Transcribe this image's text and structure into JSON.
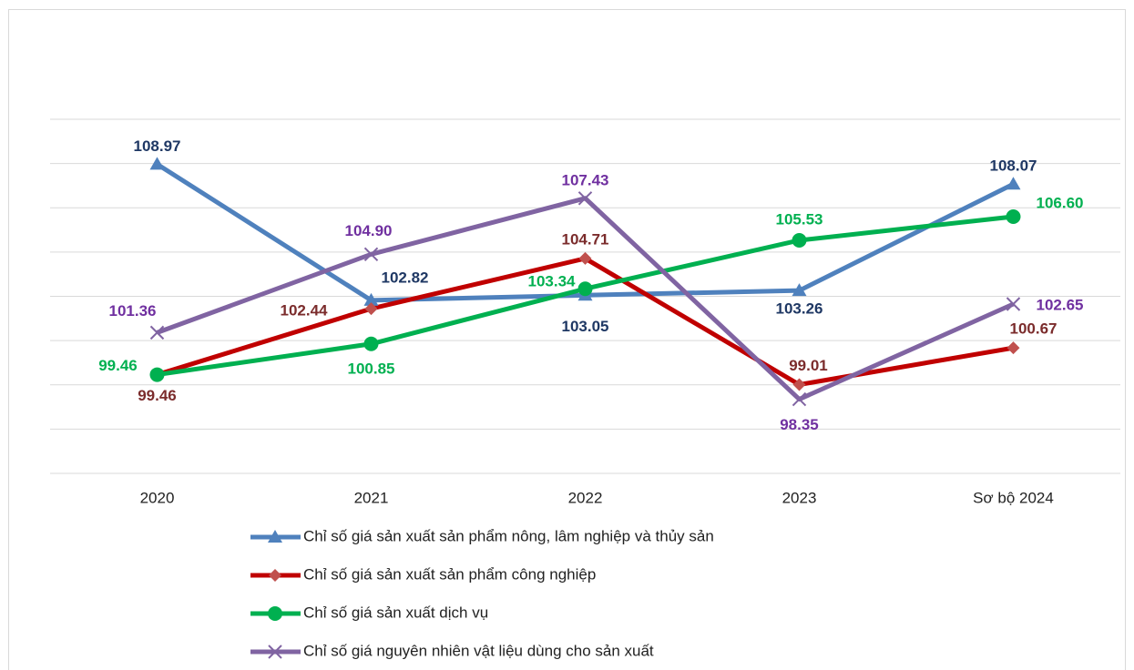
{
  "chart_data": {
    "type": "line",
    "categories": [
      "2020",
      "2021",
      "2022",
      "2023",
      "Sơ bộ 2024"
    ],
    "series": [
      {
        "name": "Chỉ số giá sản xuất sản phẩm nông, lâm nghiệp và thủy sản",
        "color": "#4f81bd",
        "label_color": "#1f3864",
        "marker": "triangle",
        "values": [
          108.97,
          102.82,
          103.05,
          103.26,
          108.07
        ]
      },
      {
        "name": "Chỉ số giá sản xuất sản phẩm công nghiệp",
        "color": "#c00000",
        "marker_color": "#c0504d",
        "label_color": "#7b2c2c",
        "marker": "diamond",
        "values": [
          99.46,
          102.44,
          104.71,
          99.01,
          100.67
        ]
      },
      {
        "name": "Chỉ số giá sản xuất dịch vụ",
        "color": "#00b050",
        "label_color": "#00b050",
        "marker": "circle",
        "values": [
          99.46,
          100.85,
          103.34,
          105.53,
          106.6
        ],
        "value_labels": [
          "99.46",
          "100.85",
          "103.34",
          "105.53",
          "106.60"
        ]
      },
      {
        "name": "Chỉ số giá nguyên nhiên vật liệu dùng cho sản xuất",
        "color": "#8064a2",
        "label_color": "#7030a0",
        "marker": "x",
        "values": [
          101.36,
          104.9,
          107.43,
          98.35,
          102.65
        ],
        "value_labels": [
          "101.36",
          "104.90",
          "107.43",
          "98.35",
          "102.65"
        ]
      }
    ],
    "ylim": [
      95,
      111
    ],
    "yticks": [
      95,
      97,
      99,
      101,
      103,
      105,
      107,
      109,
      111
    ],
    "grid": true
  }
}
